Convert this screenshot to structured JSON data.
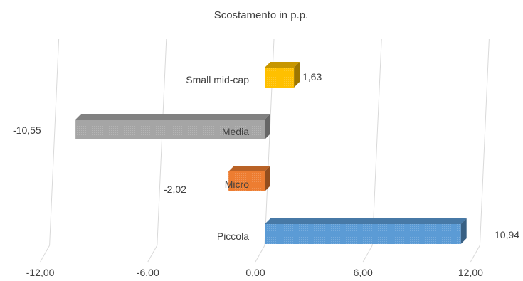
{
  "chart_data": {
    "type": "bar",
    "orientation": "horizontal",
    "title": "Scostamento in p.p.",
    "categories": [
      "Small mid-cap",
      "Media",
      "Micro",
      "Piccola"
    ],
    "values": [
      1.63,
      -10.55,
      -2.02,
      10.94
    ],
    "value_labels": [
      "1,63",
      "-10,55",
      "-2,02",
      "10,94"
    ],
    "colors": [
      "#FFC000",
      "#A5A5A5",
      "#ED7D31",
      "#5B9BD5"
    ],
    "xlim": [
      -12,
      12
    ],
    "xticks": [
      -12,
      -6,
      0,
      6,
      12
    ],
    "xtick_labels": [
      "-12,00",
      "-6,00",
      "0,00",
      "6,00",
      "12,00"
    ],
    "xlabel": "",
    "ylabel": "",
    "grid": true,
    "legend": "none",
    "style": "3d"
  }
}
